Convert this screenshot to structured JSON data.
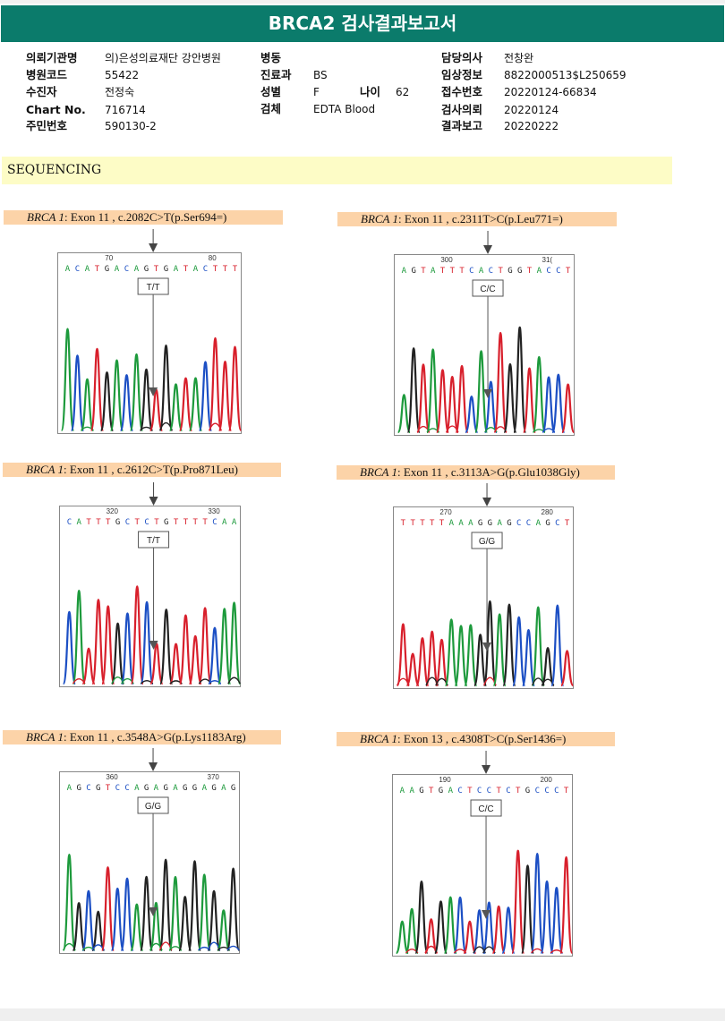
{
  "report": {
    "title": "BRCA2 검사결과보고서",
    "section": "SEQUENCING"
  },
  "patient_info": {
    "col1": [
      {
        "label": "의뢰기관명",
        "value": "의)은성의료재단 강안병원"
      },
      {
        "label": "병원코드",
        "value": "55422"
      },
      {
        "label": "수진자",
        "value": "전정숙"
      },
      {
        "label": "Chart No.",
        "value": "716714"
      },
      {
        "label": "주민번호",
        "value": "590130-2"
      }
    ],
    "col2": [
      {
        "label": "병동",
        "value": ""
      },
      {
        "label": "진료과",
        "value": "BS"
      },
      {
        "label": "성별",
        "value": "F"
      },
      {
        "label": "검체",
        "value": "EDTA Blood"
      }
    ],
    "age": {
      "label": "나이",
      "value": "62"
    },
    "col3": [
      {
        "label": "담당의사",
        "value": "전창완"
      },
      {
        "label": "임상정보",
        "value": "8822000513$L250659"
      },
      {
        "label": "접수번호",
        "value": "20220124-66834"
      },
      {
        "label": "검사의뢰",
        "value": "20220124"
      },
      {
        "label": "결과보고",
        "value": "20220222"
      }
    ]
  },
  "colors": {
    "header": "#0b7b6b",
    "section_bg": "#fdfcc6",
    "variant_bg": "#fcd3a8",
    "A": "#1d9a3c",
    "C": "#1c4fc4",
    "G": "#222222",
    "T": "#d8202c"
  },
  "variants": [
    {
      "gene": "BRCA 1",
      "detail": ": Exon 11 , c.2082C>T(p.Ser694=)",
      "genotype": "T/T",
      "sequence": "ACATGACAGTGATACTTT",
      "position_labels": [
        "70",
        "80"
      ]
    },
    {
      "gene": "BRCA 1",
      "detail": ": Exon 11 , c.2311T>C(p.Leu771=)",
      "genotype": "C/C",
      "sequence": "AGTATTTCACTGGTACCT",
      "position_labels": [
        "300",
        "31("
      ]
    },
    {
      "gene": "BRCA 1",
      "detail": ": Exon 11 , c.2612C>T(p.Pro871Leu)",
      "genotype": "T/T",
      "sequence": "CATTTGCTCTGTTTTCAA",
      "position_labels": [
        "320",
        "330"
      ]
    },
    {
      "gene": "BRCA 1",
      "detail": ": Exon 11 , c.3113A>G(p.Glu1038Gly)",
      "genotype": "G/G",
      "sequence": "TTTTTAAAGGAGCCAGCT",
      "position_labels": [
        "270",
        "280"
      ]
    },
    {
      "gene": "BRCA 1",
      "detail": ": Exon 11 , c.3548A>G(p.Lys1183Arg)",
      "genotype": "G/G",
      "sequence": "AGCGTCCAGAGAGGAGAG",
      "position_labels": [
        "360",
        "370"
      ]
    },
    {
      "gene": "BRCA 1",
      "detail": ": Exon 13 , c.4308T>C(p.Ser1436=)",
      "genotype": "C/C",
      "sequence": "AAGTGACTCCTCTGCCCT",
      "position_labels": [
        "190",
        "200"
      ]
    }
  ]
}
